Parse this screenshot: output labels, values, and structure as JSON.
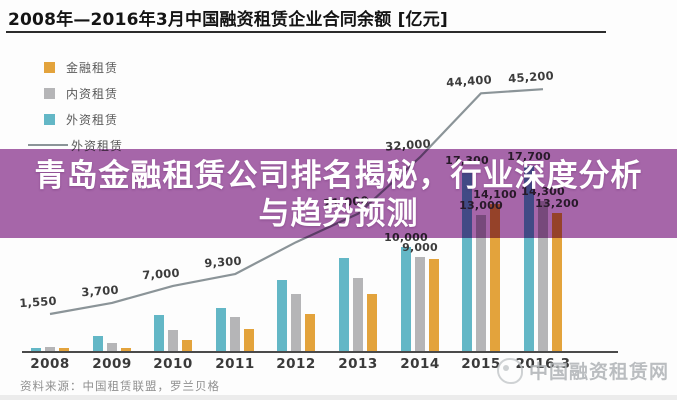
{
  "title": "2008年—2016年3月中国融资租赁企业合同余额 [亿元]",
  "headline": {
    "line1": "青岛金融租赁公司排名揭秘，行业深度分析",
    "line2": "与趋势预测"
  },
  "source_note": "资料来源：中国租赁联盟，罗兰贝格",
  "watermark": {
    "text": "中国融资租赁网"
  },
  "colors": {
    "teal_bar": "#63b7c6",
    "gray_bar": "#b5b5b7",
    "gold_bar": "#e3a33c",
    "trend_line": "#8b9498",
    "overlay_purple": "#a767ab",
    "axis": "#4a4a4a",
    "label_text": "#3c3c3c"
  },
  "legend": {
    "items": [
      {
        "label": "金融租赁",
        "swatch": "#e3a33c",
        "type": "square"
      },
      {
        "label": "内资租赁",
        "swatch": "#b5b5b7",
        "type": "square"
      },
      {
        "label": "外资租赁",
        "swatch": "#63b7c6",
        "type": "square"
      },
      {
        "label": "外资租赁",
        "swatch": "#8b9498",
        "type": "line"
      }
    ]
  },
  "chart_data": {
    "type": "bar",
    "subtype": "grouped bars with overlaid line",
    "unit": "亿元",
    "categories": [
      "2008",
      "2009",
      "2010",
      "2011",
      "2012",
      "2013",
      "2014",
      "2015",
      "2016.3"
    ],
    "bar_series": [
      {
        "name": "外资租赁",
        "color": "#63b7c6",
        "values": [
          400,
          1500,
          3500,
          4200,
          6800,
          8900,
          10000,
          17300,
          17700
        ],
        "labels": [
          "",
          "",
          "",
          "",
          "",
          "",
          "10,000",
          "17,300",
          "17,700"
        ]
      },
      {
        "name": "内资租赁",
        "color": "#b5b5b7",
        "values": [
          500,
          900,
          2100,
          3300,
          5500,
          7000,
          9000,
          13000,
          14300
        ],
        "labels": [
          "",
          "",
          "",
          "",
          "",
          "",
          "9,000",
          "13,000",
          "14,300"
        ]
      },
      {
        "name": "金融租赁",
        "color": "#e3a33c",
        "values": [
          400,
          400,
          1100,
          2200,
          3600,
          5500,
          8800,
          14100,
          13200
        ],
        "labels": [
          "",
          "",
          "",
          "",
          "",
          "",
          "",
          "14,100",
          "13,200"
        ]
      }
    ],
    "line_series": {
      "name": "外资租赁",
      "color": "#8b9498",
      "values": [
        1550,
        3700,
        7000,
        9300,
        15500,
        21000,
        32000,
        44400,
        45200
      ],
      "labels": [
        "1,550",
        "3,700",
        "7,000",
        "9,300",
        "",
        "21,000",
        "32,000",
        "44,400",
        "45,200"
      ]
    },
    "ylim": [
      0,
      46000
    ],
    "grid": false,
    "legend_position": "top-left"
  }
}
